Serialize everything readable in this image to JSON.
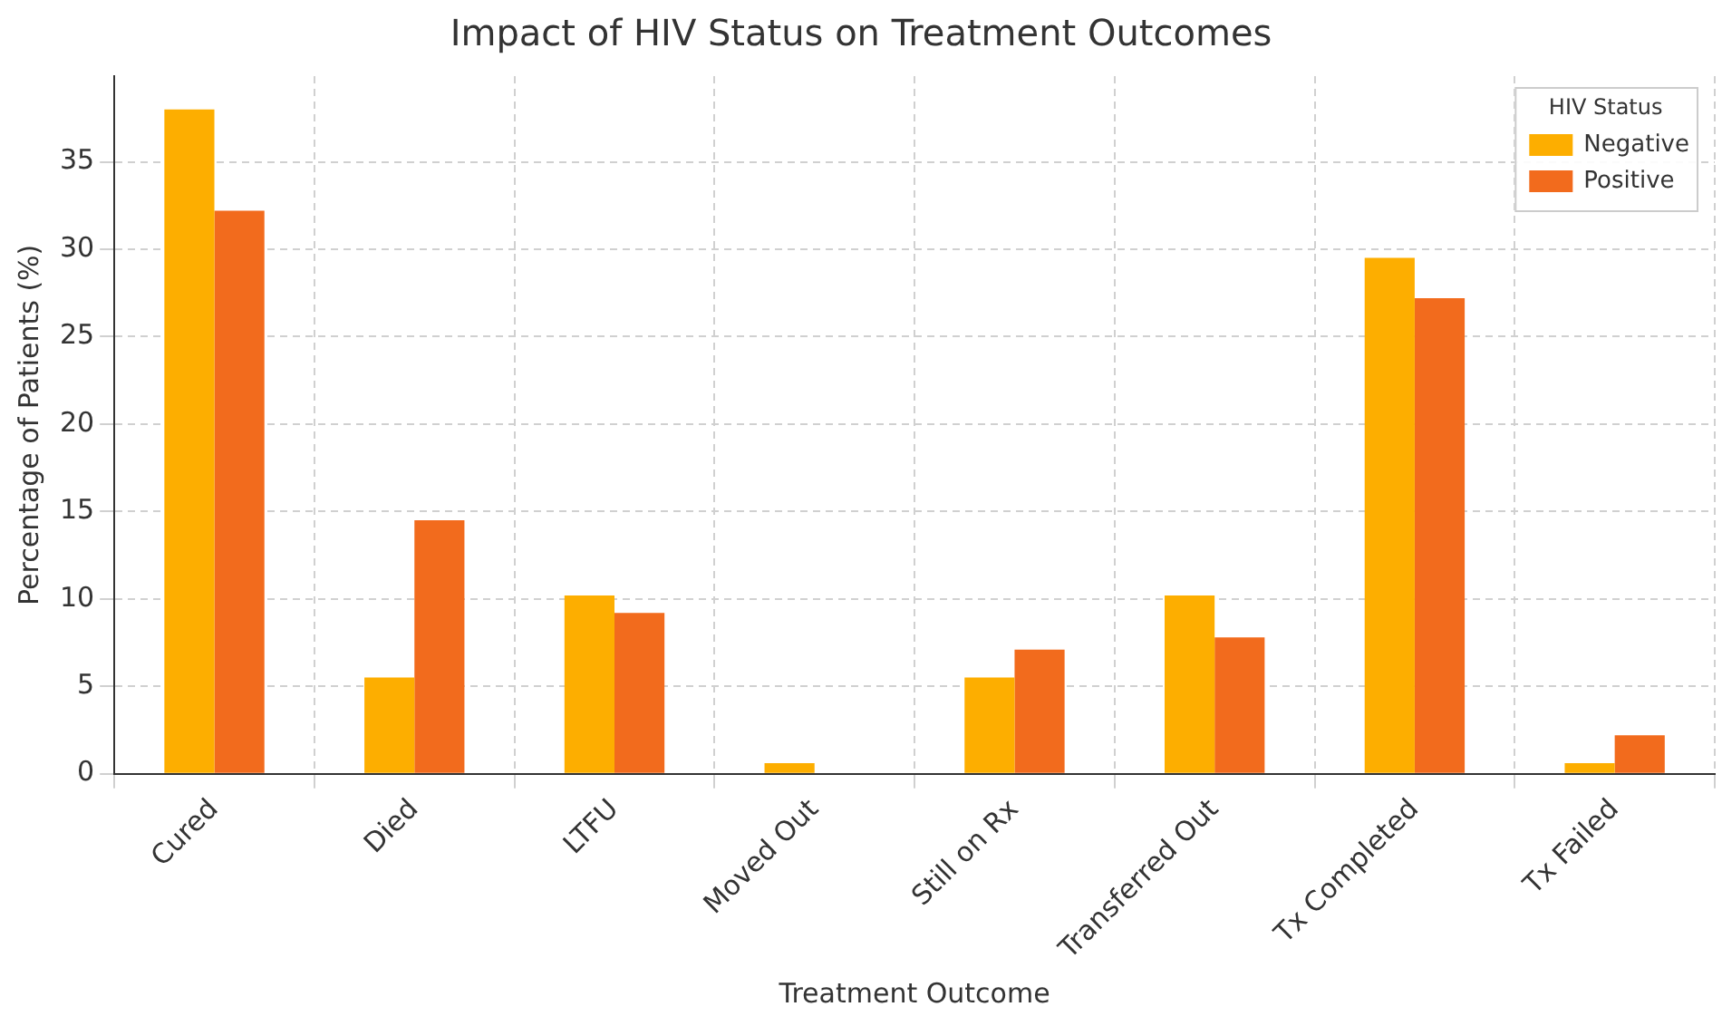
{
  "chart_data": {
    "type": "bar",
    "title": "Impact of HIV Status on Treatment Outcomes",
    "xlabel": "Treatment Outcome",
    "ylabel": "Percentage of Patients (%)",
    "legend_title": "HIV Status",
    "categories": [
      "Cured",
      "Died",
      "LTFU",
      "Moved Out",
      "Still on Rx",
      "Transferred Out",
      "Tx Completed",
      "Tx Failed"
    ],
    "series": [
      {
        "name": "Negative",
        "color": "#fdae00",
        "values": [
          38.0,
          5.5,
          10.2,
          0.6,
          5.5,
          10.2,
          29.5,
          0.6
        ]
      },
      {
        "name": "Positive",
        "color": "#f26b1d",
        "values": [
          32.2,
          14.5,
          9.2,
          0,
          7.1,
          7.8,
          27.2,
          2.2
        ]
      }
    ],
    "ylim": [
      0,
      39.9
    ],
    "yticks": [
      0,
      5,
      10,
      15,
      20,
      25,
      30,
      35
    ],
    "grid": true,
    "legend": "top right"
  }
}
